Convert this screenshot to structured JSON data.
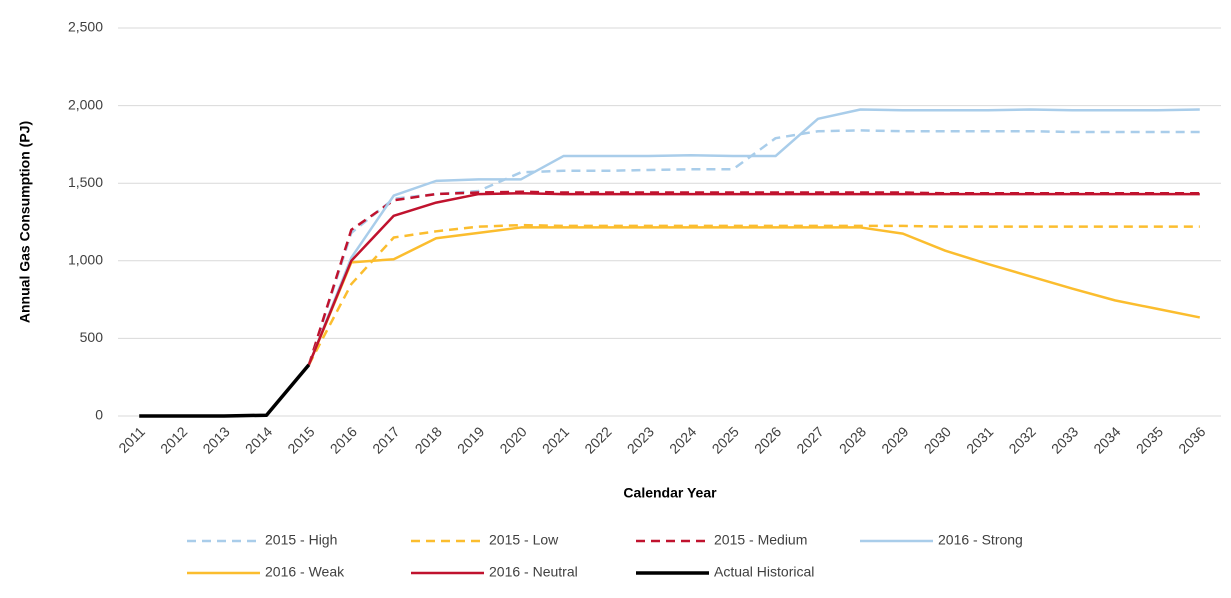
{
  "chart_data": {
    "type": "line",
    "x_label": "Calendar Year",
    "y_label": "Annual Gas Consumption (PJ)",
    "categories": [
      "2011",
      "2012",
      "2013",
      "2014",
      "2015",
      "2016",
      "2017",
      "2018",
      "2019",
      "2020",
      "2021",
      "2022",
      "2023",
      "2024",
      "2025",
      "2026",
      "2027",
      "2028",
      "2029",
      "2030",
      "2031",
      "2032",
      "2033",
      "2034",
      "2035",
      "2036"
    ],
    "ylim": [
      0,
      2500
    ],
    "yticks": [
      0,
      500,
      {
        "value": 1000,
        "label": "1,000"
      },
      {
        "value": 1500,
        "label": "1,500"
      },
      {
        "value": 2000,
        "label": "2,000"
      },
      {
        "value": 2500,
        "label": "2,500"
      }
    ],
    "grid": true,
    "legend": "bottom",
    "series": [
      {
        "name": "2015 - High",
        "color": "#a9cdea",
        "dashed": true,
        "values": [
          null,
          null,
          null,
          null,
          330,
          1180,
          1400,
          1430,
          1450,
          1570,
          1580,
          1580,
          1585,
          1590,
          1590,
          1790,
          1835,
          1840,
          1835,
          1835,
          1835,
          1835,
          1830,
          1830,
          1830,
          1830
        ]
      },
      {
        "name": "2015 - Low",
        "color": "#fbbd2e",
        "dashed": true,
        "values": [
          null,
          null,
          null,
          null,
          330,
          850,
          1150,
          1190,
          1220,
          1230,
          1225,
          1225,
          1225,
          1225,
          1225,
          1225,
          1225,
          1225,
          1225,
          1220,
          1220,
          1220,
          1220,
          1220,
          1220,
          1220
        ]
      },
      {
        "name": "2015 - Medium",
        "color": "#c0122e",
        "dashed": true,
        "values": [
          null,
          null,
          null,
          null,
          330,
          1200,
          1390,
          1430,
          1440,
          1445,
          1440,
          1440,
          1440,
          1440,
          1440,
          1440,
          1440,
          1440,
          1440,
          1435,
          1435,
          1435,
          1435,
          1435,
          1435,
          1435
        ]
      },
      {
        "name": "2016 - Strong",
        "color": "#a9cdea",
        "dashed": false,
        "values": [
          null,
          null,
          null,
          null,
          330,
          1020,
          1420,
          1515,
          1525,
          1525,
          1675,
          1675,
          1675,
          1680,
          1675,
          1675,
          1915,
          1975,
          1970,
          1970,
          1970,
          1975,
          1970,
          1970,
          1970,
          1975
        ]
      },
      {
        "name": "2016 - Weak",
        "color": "#fbbd2e",
        "dashed": false,
        "values": [
          null,
          null,
          null,
          null,
          330,
          990,
          1010,
          1145,
          1180,
          1215,
          1215,
          1215,
          1215,
          1215,
          1215,
          1215,
          1215,
          1215,
          1175,
          1065,
          980,
          900,
          820,
          745,
          690,
          635
        ]
      },
      {
        "name": "2016 - Neutral",
        "color": "#c0122e",
        "dashed": false,
        "values": [
          null,
          null,
          null,
          null,
          330,
          1000,
          1290,
          1375,
          1430,
          1435,
          1430,
          1430,
          1430,
          1430,
          1430,
          1430,
          1430,
          1430,
          1430,
          1430,
          1430,
          1430,
          1430,
          1430,
          1430,
          1430
        ]
      },
      {
        "name": "Actual Historical",
        "color": "#000000",
        "dashed": false,
        "width": 3.5,
        "values": [
          0,
          0,
          0,
          5,
          330,
          null,
          null,
          null,
          null,
          null,
          null,
          null,
          null,
          null,
          null,
          null,
          null,
          null,
          null,
          null,
          null,
          null,
          null,
          null,
          null,
          null
        ]
      }
    ]
  }
}
